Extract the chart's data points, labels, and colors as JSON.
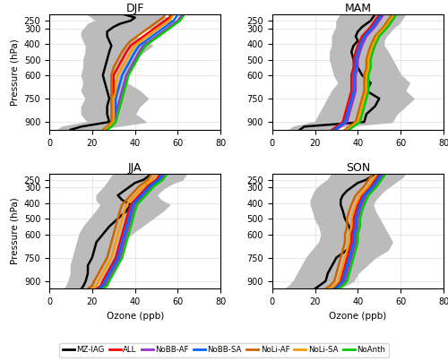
{
  "pressure_levels": [
    210,
    230,
    250,
    270,
    290,
    320,
    350,
    380,
    410,
    450,
    500,
    550,
    600,
    650,
    700,
    750,
    800,
    850,
    900,
    930,
    950
  ],
  "seasons": [
    "DJF",
    "MAM",
    "JJA",
    "SON"
  ],
  "lines": {
    "MZ-IAG": {
      "color": "#000000",
      "DJF": [
        35,
        40,
        38,
        33,
        30,
        27,
        27,
        28,
        29,
        28,
        27,
        26,
        25,
        26,
        27,
        28,
        27,
        27,
        28,
        15,
        10
      ],
      "MAM": [
        48,
        47,
        46,
        44,
        42,
        40,
        39,
        40,
        38,
        37,
        38,
        40,
        42,
        46,
        44,
        50,
        48,
        44,
        43,
        15,
        13
      ],
      "JJA": [
        48,
        46,
        44,
        40,
        38,
        35,
        32,
        34,
        38,
        36,
        32,
        28,
        25,
        22,
        21,
        20,
        18,
        18,
        17,
        16,
        15
      ],
      "SON": [
        48,
        46,
        44,
        40,
        38,
        35,
        33,
        32,
        32,
        33,
        34,
        36,
        37,
        37,
        35,
        30,
        28,
        26,
        25,
        22,
        20
      ]
    },
    "ALL": {
      "color": "#ff0000",
      "DJF": [
        57,
        56,
        54,
        52,
        50,
        47,
        44,
        41,
        38,
        36,
        34,
        32,
        30,
        30,
        30,
        30,
        30,
        30,
        30,
        28,
        26
      ],
      "MAM": [
        50,
        49,
        48,
        47,
        46,
        44,
        42,
        41,
        40,
        39,
        38,
        38,
        37,
        37,
        37,
        36,
        35,
        34,
        33,
        30,
        28
      ],
      "JJA": [
        52,
        51,
        50,
        48,
        46,
        44,
        42,
        40,
        38,
        37,
        36,
        35,
        34,
        33,
        32,
        31,
        29,
        27,
        25,
        24,
        22
      ],
      "SON": [
        50,
        49,
        48,
        47,
        46,
        44,
        42,
        41,
        40,
        39,
        38,
        38,
        37,
        37,
        36,
        35,
        34,
        33,
        32,
        30,
        28
      ]
    },
    "NoBB-AF": {
      "color": "#9933cc",
      "DJF": [
        62,
        61,
        60,
        58,
        56,
        53,
        50,
        47,
        44,
        42,
        40,
        38,
        36,
        35,
        34,
        33,
        32,
        31,
        30,
        28,
        27
      ],
      "MAM": [
        52,
        51,
        50,
        49,
        48,
        46,
        44,
        43,
        42,
        41,
        40,
        40,
        39,
        39,
        39,
        38,
        37,
        36,
        35,
        32,
        30
      ],
      "JJA": [
        54,
        53,
        52,
        50,
        48,
        46,
        44,
        42,
        40,
        39,
        38,
        37,
        36,
        35,
        34,
        33,
        31,
        29,
        27,
        26,
        24
      ],
      "SON": [
        52,
        51,
        50,
        49,
        48,
        46,
        44,
        43,
        42,
        41,
        40,
        40,
        39,
        39,
        38,
        37,
        36,
        35,
        34,
        32,
        30
      ]
    },
    "NoBB-SA": {
      "color": "#0066ff",
      "DJF": [
        60,
        59,
        58,
        56,
        54,
        51,
        48,
        45,
        42,
        40,
        38,
        36,
        34,
        33,
        32,
        31,
        31,
        30,
        30,
        28,
        26
      ],
      "MAM": [
        51,
        50,
        49,
        48,
        47,
        45,
        43,
        42,
        41,
        40,
        39,
        39,
        38,
        38,
        38,
        37,
        36,
        35,
        34,
        31,
        29
      ],
      "JJA": [
        53,
        52,
        51,
        49,
        47,
        45,
        43,
        41,
        39,
        38,
        37,
        36,
        35,
        34,
        33,
        32,
        30,
        28,
        26,
        25,
        23
      ],
      "SON": [
        51,
        50,
        49,
        48,
        47,
        45,
        43,
        42,
        41,
        40,
        39,
        39,
        38,
        38,
        37,
        36,
        35,
        34,
        33,
        31,
        29
      ]
    },
    "NoLi-AF": {
      "color": "#cc6600",
      "DJF": [
        54,
        53,
        51,
        49,
        47,
        44,
        41,
        38,
        36,
        34,
        32,
        30,
        29,
        29,
        29,
        29,
        29,
        29,
        29,
        27,
        25
      ],
      "MAM": [
        56,
        55,
        54,
        53,
        52,
        50,
        48,
        47,
        46,
        45,
        44,
        44,
        43,
        43,
        43,
        42,
        41,
        40,
        39,
        36,
        34
      ],
      "JJA": [
        48,
        47,
        46,
        44,
        42,
        40,
        38,
        36,
        34,
        33,
        32,
        31,
        30,
        29,
        28,
        27,
        25,
        23,
        21,
        20,
        18
      ],
      "SON": [
        47,
        46,
        45,
        44,
        43,
        41,
        39,
        38,
        37,
        36,
        35,
        35,
        34,
        34,
        33,
        32,
        31,
        30,
        29,
        27,
        25
      ]
    },
    "NoLi-SA": {
      "color": "#ff9900",
      "DJF": [
        58,
        57,
        56,
        54,
        52,
        49,
        46,
        43,
        40,
        38,
        36,
        34,
        32,
        31,
        31,
        30,
        30,
        30,
        30,
        28,
        26
      ],
      "MAM": [
        57,
        56,
        55,
        54,
        53,
        51,
        49,
        48,
        47,
        46,
        45,
        45,
        44,
        44,
        44,
        43,
        42,
        41,
        40,
        37,
        35
      ],
      "JJA": [
        50,
        49,
        48,
        46,
        44,
        42,
        40,
        38,
        36,
        35,
        34,
        33,
        32,
        31,
        30,
        29,
        27,
        25,
        23,
        22,
        20
      ],
      "SON": [
        49,
        48,
        47,
        46,
        45,
        43,
        41,
        40,
        39,
        38,
        37,
        37,
        36,
        36,
        35,
        34,
        33,
        32,
        31,
        29,
        27
      ]
    },
    "NoAnth": {
      "color": "#00cc00",
      "DJF": [
        63,
        62,
        61,
        59,
        57,
        54,
        51,
        48,
        45,
        43,
        41,
        39,
        37,
        36,
        35,
        34,
        33,
        32,
        31,
        29,
        27
      ],
      "MAM": [
        58,
        57,
        56,
        55,
        54,
        52,
        50,
        49,
        48,
        47,
        46,
        46,
        45,
        45,
        45,
        44,
        43,
        42,
        41,
        38,
        36
      ],
      "JJA": [
        55,
        54,
        53,
        51,
        49,
        47,
        45,
        43,
        41,
        40,
        39,
        38,
        37,
        36,
        35,
        34,
        32,
        30,
        28,
        27,
        25
      ],
      "SON": [
        53,
        52,
        51,
        50,
        49,
        47,
        45,
        44,
        43,
        42,
        41,
        41,
        40,
        40,
        39,
        38,
        37,
        36,
        35,
        33,
        31
      ]
    }
  },
  "shading": {
    "DJF": {
      "lower": [
        18,
        20,
        22,
        18,
        17,
        15,
        15,
        16,
        17,
        17,
        16,
        16,
        15,
        16,
        15,
        17,
        15,
        15,
        18,
        6,
        4
      ],
      "upper": [
        50,
        55,
        58,
        53,
        49,
        42,
        40,
        44,
        48,
        44,
        40,
        37,
        35,
        36,
        42,
        46,
        42,
        40,
        45,
        30,
        22
      ]
    },
    "MAM": {
      "lower": [
        32,
        31,
        30,
        30,
        30,
        29,
        28,
        28,
        28,
        27,
        27,
        28,
        29,
        31,
        28,
        26,
        24,
        22,
        20,
        10,
        8
      ],
      "upper": [
        62,
        61,
        60,
        59,
        57,
        55,
        53,
        52,
        52,
        54,
        56,
        58,
        60,
        64,
        62,
        66,
        62,
        58,
        56,
        32,
        26
      ]
    },
    "JJA": {
      "lower": [
        30,
        29,
        28,
        27,
        26,
        24,
        22,
        22,
        24,
        22,
        19,
        16,
        14,
        13,
        12,
        11,
        10,
        10,
        9,
        8,
        7
      ],
      "upper": [
        64,
        63,
        62,
        58,
        55,
        52,
        50,
        52,
        56,
        53,
        48,
        43,
        38,
        34,
        32,
        32,
        28,
        26,
        24,
        22,
        20
      ]
    },
    "SON": {
      "lower": [
        28,
        27,
        26,
        24,
        22,
        20,
        19,
        18,
        18,
        19,
        20,
        22,
        23,
        22,
        19,
        16,
        14,
        12,
        10,
        8,
        6
      ],
      "upper": [
        62,
        61,
        59,
        57,
        55,
        52,
        50,
        48,
        47,
        48,
        50,
        52,
        54,
        56,
        54,
        48,
        44,
        40,
        38,
        34,
        30
      ]
    }
  },
  "pressure_ticks": [
    250,
    300,
    400,
    500,
    600,
    750,
    900
  ],
  "ylim": [
    950,
    210
  ],
  "xlim": [
    0,
    80
  ],
  "xticks": [
    0,
    20,
    40,
    60,
    80
  ],
  "ylabel": "Pressure (hPa)",
  "xlabel": "Ozone (ppb)",
  "line_order": [
    "MZ-IAG",
    "ALL",
    "NoBB-AF",
    "NoBB-SA",
    "NoLi-AF",
    "NoLi-SA",
    "NoAnth"
  ]
}
